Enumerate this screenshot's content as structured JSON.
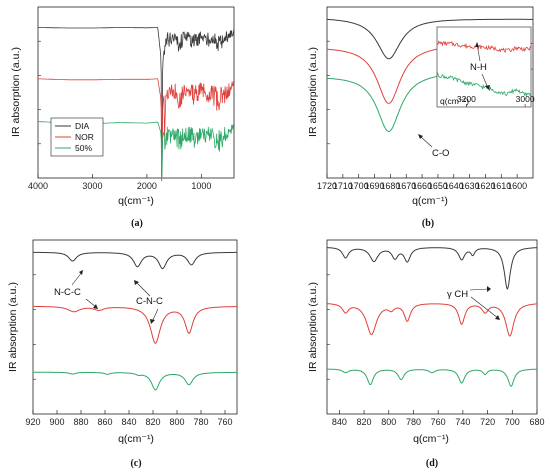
{
  "colors": {
    "dia": "#3a3a3a",
    "nor": "#e0413d",
    "mix": "#2fa86a"
  },
  "chart_data": [
    {
      "id": "a",
      "type": "line",
      "caption": "(a)",
      "xlabel": "q(cm⁻¹)",
      "ylabel": "IR absorption (a.u.)",
      "xlim": [
        4000,
        400
      ],
      "xticks": [
        4000,
        3000,
        2000,
        1000
      ],
      "legend": {
        "placement": "bottom-left",
        "entries": [
          "DIA",
          "NOR",
          "50%"
        ]
      },
      "series": [
        {
          "name": "DIA",
          "color": "dia",
          "offset": 0.88,
          "x": [
            4000,
            3400,
            3000,
            2500,
            2000,
            1800,
            1720,
            1650,
            1500,
            1400,
            1300,
            1200,
            1100,
            1000,
            900,
            800,
            700,
            600,
            500,
            400
          ],
          "y": [
            0,
            0.01,
            0.01,
            0,
            0.005,
            0,
            0.8,
            0.09,
            0.06,
            0.12,
            0.04,
            0.08,
            0.1,
            0.05,
            0.09,
            0.06,
            0.12,
            0.08,
            0.05,
            0.02
          ]
        },
        {
          "name": "NOR",
          "color": "nor",
          "offset": 0.58,
          "x": [
            4000,
            3400,
            3000,
            2500,
            2000,
            1800,
            1720,
            1650,
            1500,
            1400,
            1300,
            1200,
            1100,
            1000,
            900,
            800,
            700,
            600,
            500,
            400
          ],
          "y": [
            0,
            0.02,
            0.02,
            0.01,
            0.01,
            0,
            0.55,
            0.1,
            0.08,
            0.14,
            0.07,
            0.1,
            0.12,
            0.06,
            0.11,
            0.09,
            0.18,
            0.13,
            0.08,
            0.03
          ]
        },
        {
          "name": "50%",
          "color": "mix",
          "offset": 0.33,
          "x": [
            4000,
            3400,
            3000,
            2500,
            2000,
            1800,
            1720,
            1650,
            1500,
            1400,
            1300,
            1200,
            1100,
            1000,
            900,
            800,
            700,
            600,
            500,
            400
          ],
          "y": [
            0,
            0.03,
            0.04,
            0.02,
            0.03,
            0.01,
            0.3,
            0.1,
            0.09,
            0.14,
            0.08,
            0.1,
            0.12,
            0.07,
            0.1,
            0.08,
            0.15,
            0.11,
            0.07,
            0.02
          ]
        }
      ]
    },
    {
      "id": "b",
      "type": "line",
      "caption": "(b)",
      "xlabel": "q(cm⁻¹)",
      "ylabel": "IR absorption (a.u.)",
      "xlim": [
        1720,
        1590
      ],
      "xticks": [
        1720,
        1710,
        1700,
        1690,
        1680,
        1670,
        1660,
        1650,
        1640,
        1630,
        1620,
        1610,
        1600
      ],
      "annotations": [
        {
          "text": "C-O"
        }
      ],
      "series": [
        {
          "name": "DIA",
          "color": "dia",
          "base": 0.94,
          "center": 1681,
          "width": 9,
          "depth": 0.24,
          "slope": -0.01
        },
        {
          "name": "NOR",
          "color": "nor",
          "base": 0.77,
          "center": 1681,
          "width": 9,
          "depth": 0.34,
          "slope": 0.02
        },
        {
          "name": "50%",
          "color": "mix",
          "base": 0.6,
          "center": 1681,
          "width": 9,
          "depth": 0.34,
          "slope": 0.04
        }
      ],
      "inset": {
        "xlabel": "q(cm⁻¹)",
        "xlim": [
          3300,
          2980
        ],
        "xticks": [
          3200,
          3000
        ],
        "annotations": [
          {
            "text": "N-H"
          }
        ],
        "series": [
          {
            "name": "NOR",
            "color": "nor",
            "x": [
              3300,
              3250,
              3200,
              3150,
              3100,
              3060,
              3030,
              3000,
              2980
            ],
            "y": [
              0.8,
              0.79,
              0.76,
              0.75,
              0.73,
              0.7,
              0.74,
              0.72,
              0.73
            ]
          },
          {
            "name": "50%",
            "color": "mix",
            "x": [
              3300,
              3250,
              3200,
              3150,
              3100,
              3060,
              3030,
              3000,
              2980
            ],
            "y": [
              0.4,
              0.36,
              0.3,
              0.26,
              0.2,
              0.16,
              0.22,
              0.15,
              0.17
            ]
          }
        ]
      }
    },
    {
      "id": "c",
      "type": "line",
      "caption": "(c)",
      "xlabel": "q(cm⁻¹)",
      "ylabel": "IR absorption (a.u.)",
      "xlim": [
        920,
        750
      ],
      "xticks": [
        920,
        900,
        880,
        860,
        840,
        820,
        800,
        780,
        760
      ],
      "annotations": [
        {
          "text": "N-C-C"
        },
        {
          "text": "C-N-C"
        }
      ],
      "series": [
        {
          "name": "DIA",
          "color": "dia",
          "base": 0.93,
          "peaks": [
            [
              887,
              4,
              0.05
            ],
            [
              833,
              4,
              0.08
            ],
            [
              812,
              4,
              0.09
            ],
            [
              788,
              4,
              0.07
            ]
          ]
        },
        {
          "name": "NOR",
          "color": "nor",
          "base": 0.62,
          "peaks": [
            [
              886,
              6,
              0.03
            ],
            [
              865,
              5,
              0.02
            ],
            [
              818,
              5,
              0.21
            ],
            [
              790,
              4,
              0.15
            ]
          ]
        },
        {
          "name": "50%",
          "color": "mix",
          "base": 0.24,
          "peaks": [
            [
              887,
              3,
              0.01
            ],
            [
              858,
              3,
              0.01
            ],
            [
              832,
              3,
              0.01
            ],
            [
              818,
              4,
              0.1
            ],
            [
              790,
              4,
              0.07
            ]
          ]
        }
      ]
    },
    {
      "id": "d",
      "type": "line",
      "caption": "(d)",
      "xlabel": "q(cm⁻¹)",
      "ylabel": "IR absorption (a.u.)",
      "xlim": [
        850,
        680
      ],
      "xticks": [
        840,
        820,
        800,
        780,
        760,
        740,
        720,
        700,
        680
      ],
      "annotations": [
        {
          "text": "γ CH"
        }
      ],
      "series": [
        {
          "name": "DIA",
          "color": "dia",
          "base": 0.96,
          "peaks": [
            [
              835,
              3,
              0.06
            ],
            [
              812,
              4,
              0.08
            ],
            [
              795,
              3,
              0.06
            ],
            [
              785,
              3,
              0.08
            ],
            [
              741,
              3,
              0.07
            ],
            [
              732,
              2,
              0.04
            ],
            [
              704,
              3,
              0.24
            ]
          ]
        },
        {
          "name": "NOR",
          "color": "nor",
          "base": 0.64,
          "peaks": [
            [
              835,
              3,
              0.05
            ],
            [
              814,
              5,
              0.18
            ],
            [
              798,
              3,
              0.03
            ],
            [
              785,
              3,
              0.1
            ],
            [
              741,
              3,
              0.12
            ],
            [
              722,
              3,
              0.05
            ],
            [
              702,
              4,
              0.19
            ]
          ]
        },
        {
          "name": "50%",
          "color": "mix",
          "base": 0.26,
          "peaks": [
            [
              835,
              3,
              0.02
            ],
            [
              815,
              3,
              0.09
            ],
            [
              790,
              3,
              0.06
            ],
            [
              765,
              3,
              0.02
            ],
            [
              741,
              3,
              0.08
            ],
            [
              722,
              2,
              0.03
            ],
            [
              701,
              3,
              0.1
            ]
          ]
        }
      ]
    }
  ]
}
